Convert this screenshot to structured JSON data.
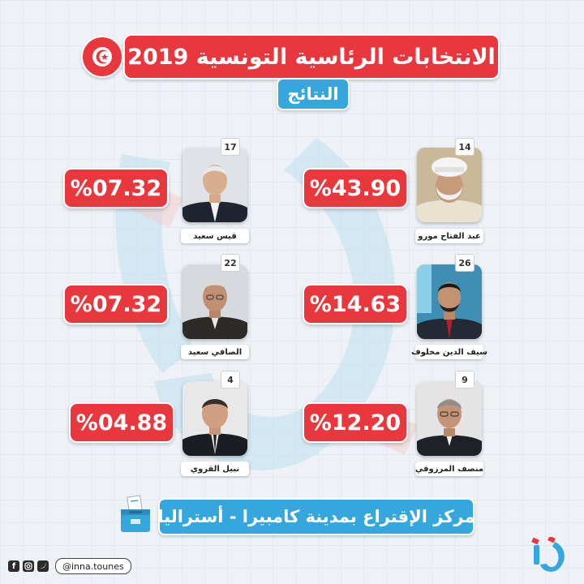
{
  "header": {
    "title": "الانتخابات الرئاسية التونسية 2019",
    "subtitle": "النتائج"
  },
  "candidates": [
    {
      "number": "14",
      "name": "عبد الفتاح مورو",
      "percent": "%43.90",
      "photo": "candidate-photo-turban"
    },
    {
      "number": "17",
      "name": "قيس سعيد",
      "percent": "%07.32",
      "photo": "candidate-photo-suit"
    },
    {
      "number": "26",
      "name": "سيف الدين مخلوف",
      "percent": "%14.63",
      "photo": "candidate-photo-suit"
    },
    {
      "number": "22",
      "name": "الصافي سعيد",
      "percent": "%07.32",
      "photo": "candidate-photo-grey-hair"
    },
    {
      "number": "9",
      "name": "منصف المرزوقي",
      "percent": "%12.20",
      "photo": "candidate-photo-suit"
    },
    {
      "number": "4",
      "name": "نبيل القروي",
      "percent": "%04.88",
      "photo": "candidate-photo-suit"
    }
  ],
  "footer": {
    "location": "مركز الإقتراع بمدينة كامبيرا - أستراليا",
    "handle": "@inna.tounes",
    "social_icons": [
      "facebook-icon",
      "instagram-icon",
      "twitter-icon"
    ],
    "logo_icon": "inna-logo-icon",
    "ballot_icon": "ballot-box-icon"
  },
  "colors": {
    "red": "#e8383d",
    "blue": "#36a7dc",
    "background": "#eef2f6"
  }
}
